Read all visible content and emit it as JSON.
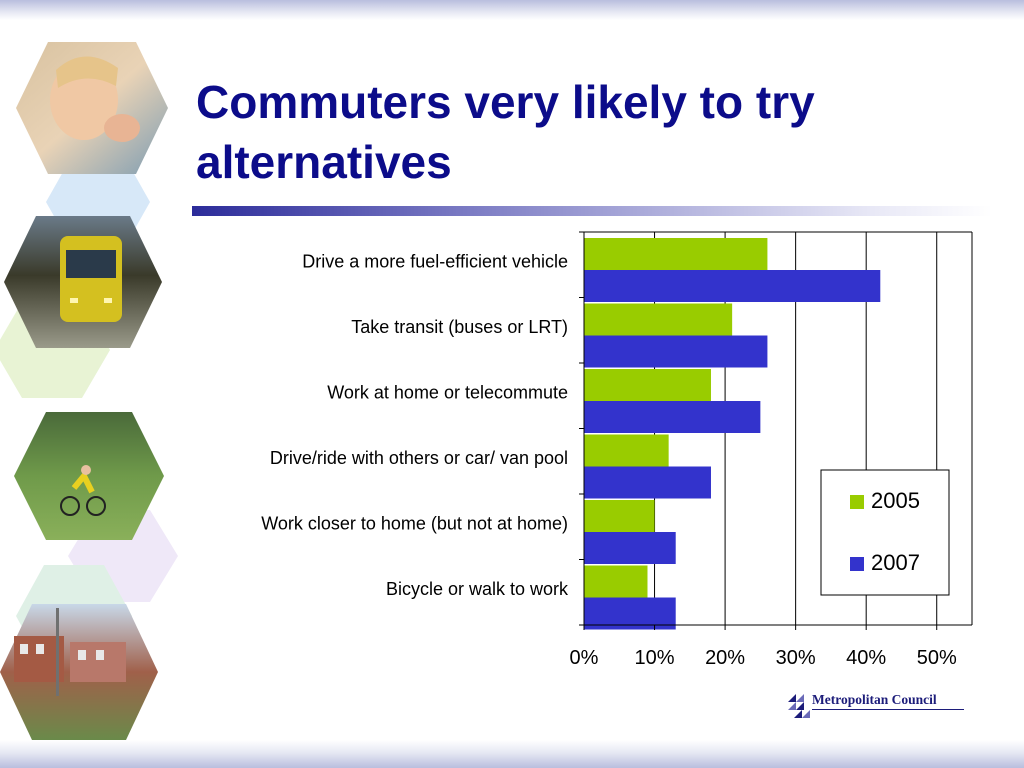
{
  "slide": {
    "title": "Commuters very likely to try alternatives",
    "logo_text": "Metropolitan Council"
  },
  "colors": {
    "title": "#0c0c8a",
    "series_2005": "#99cc00",
    "series_2007": "#3333cc"
  },
  "photos": [
    "girl-drinking-water-photo",
    "light-rail-train-photo",
    "cyclist-photo",
    "townhouses-photo"
  ],
  "chart_data": {
    "type": "bar",
    "orientation": "horizontal",
    "categories": [
      "Drive a more fuel-efficient vehicle",
      "Take transit (buses or LRT)",
      "Work at home or telecommute",
      "Drive/ride with others or car/ van pool",
      "Work closer to home (but not at home)",
      "Bicycle or walk to work"
    ],
    "series": [
      {
        "name": "2005",
        "color": "#99cc00",
        "values": [
          26,
          21,
          18,
          12,
          10,
          9
        ]
      },
      {
        "name": "2007",
        "color": "#3333cc",
        "values": [
          42,
          26,
          25,
          18,
          13,
          13
        ]
      }
    ],
    "xlim": [
      0,
      55
    ],
    "xticks": [
      0,
      10,
      20,
      30,
      40,
      50
    ],
    "tick_labels": [
      "0%",
      "10%",
      "20%",
      "30%",
      "40%",
      "50%"
    ],
    "grid": "vertical",
    "legend": "bottom-right"
  }
}
